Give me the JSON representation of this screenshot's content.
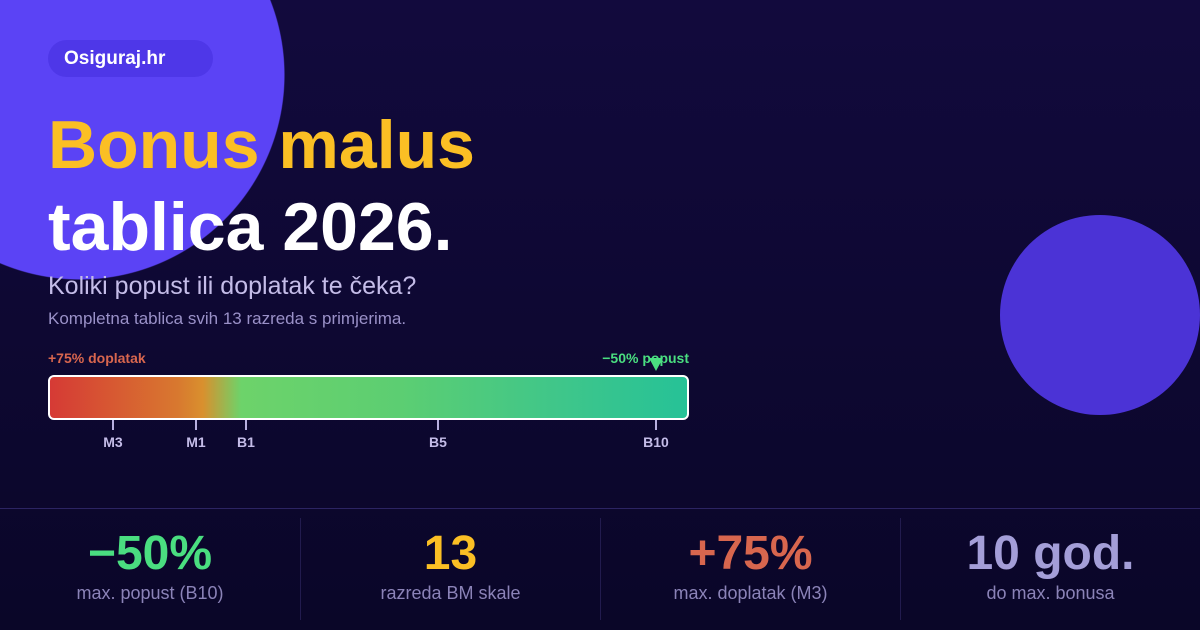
{
  "brand": "Osiguraj.hr",
  "title_line1": "Bonus malus",
  "title_line2": "tablica 2026.",
  "subtitle": "Koliki popust ili doplatak te čeka?",
  "description": "Kompletna tablica svih 13 razreda s primjerima.",
  "scale": {
    "left_label": "+75% doplatak",
    "right_label": "−50% popust",
    "marker_class": "B10",
    "ticks": [
      "M3",
      "M1",
      "B1",
      "B5",
      "B10"
    ]
  },
  "stats": [
    {
      "value": "−50%",
      "label": "max. popust (B10)",
      "color": "#4ade80"
    },
    {
      "value": "13",
      "label": "razreda BM skale",
      "color": "#fbbf24"
    },
    {
      "value": "+75%",
      "label": "max. doplatak (M3)",
      "color": "#d8664e"
    },
    {
      "value": "10 god.",
      "label": "do max. bonusa",
      "color": "#a49ed8"
    }
  ]
}
